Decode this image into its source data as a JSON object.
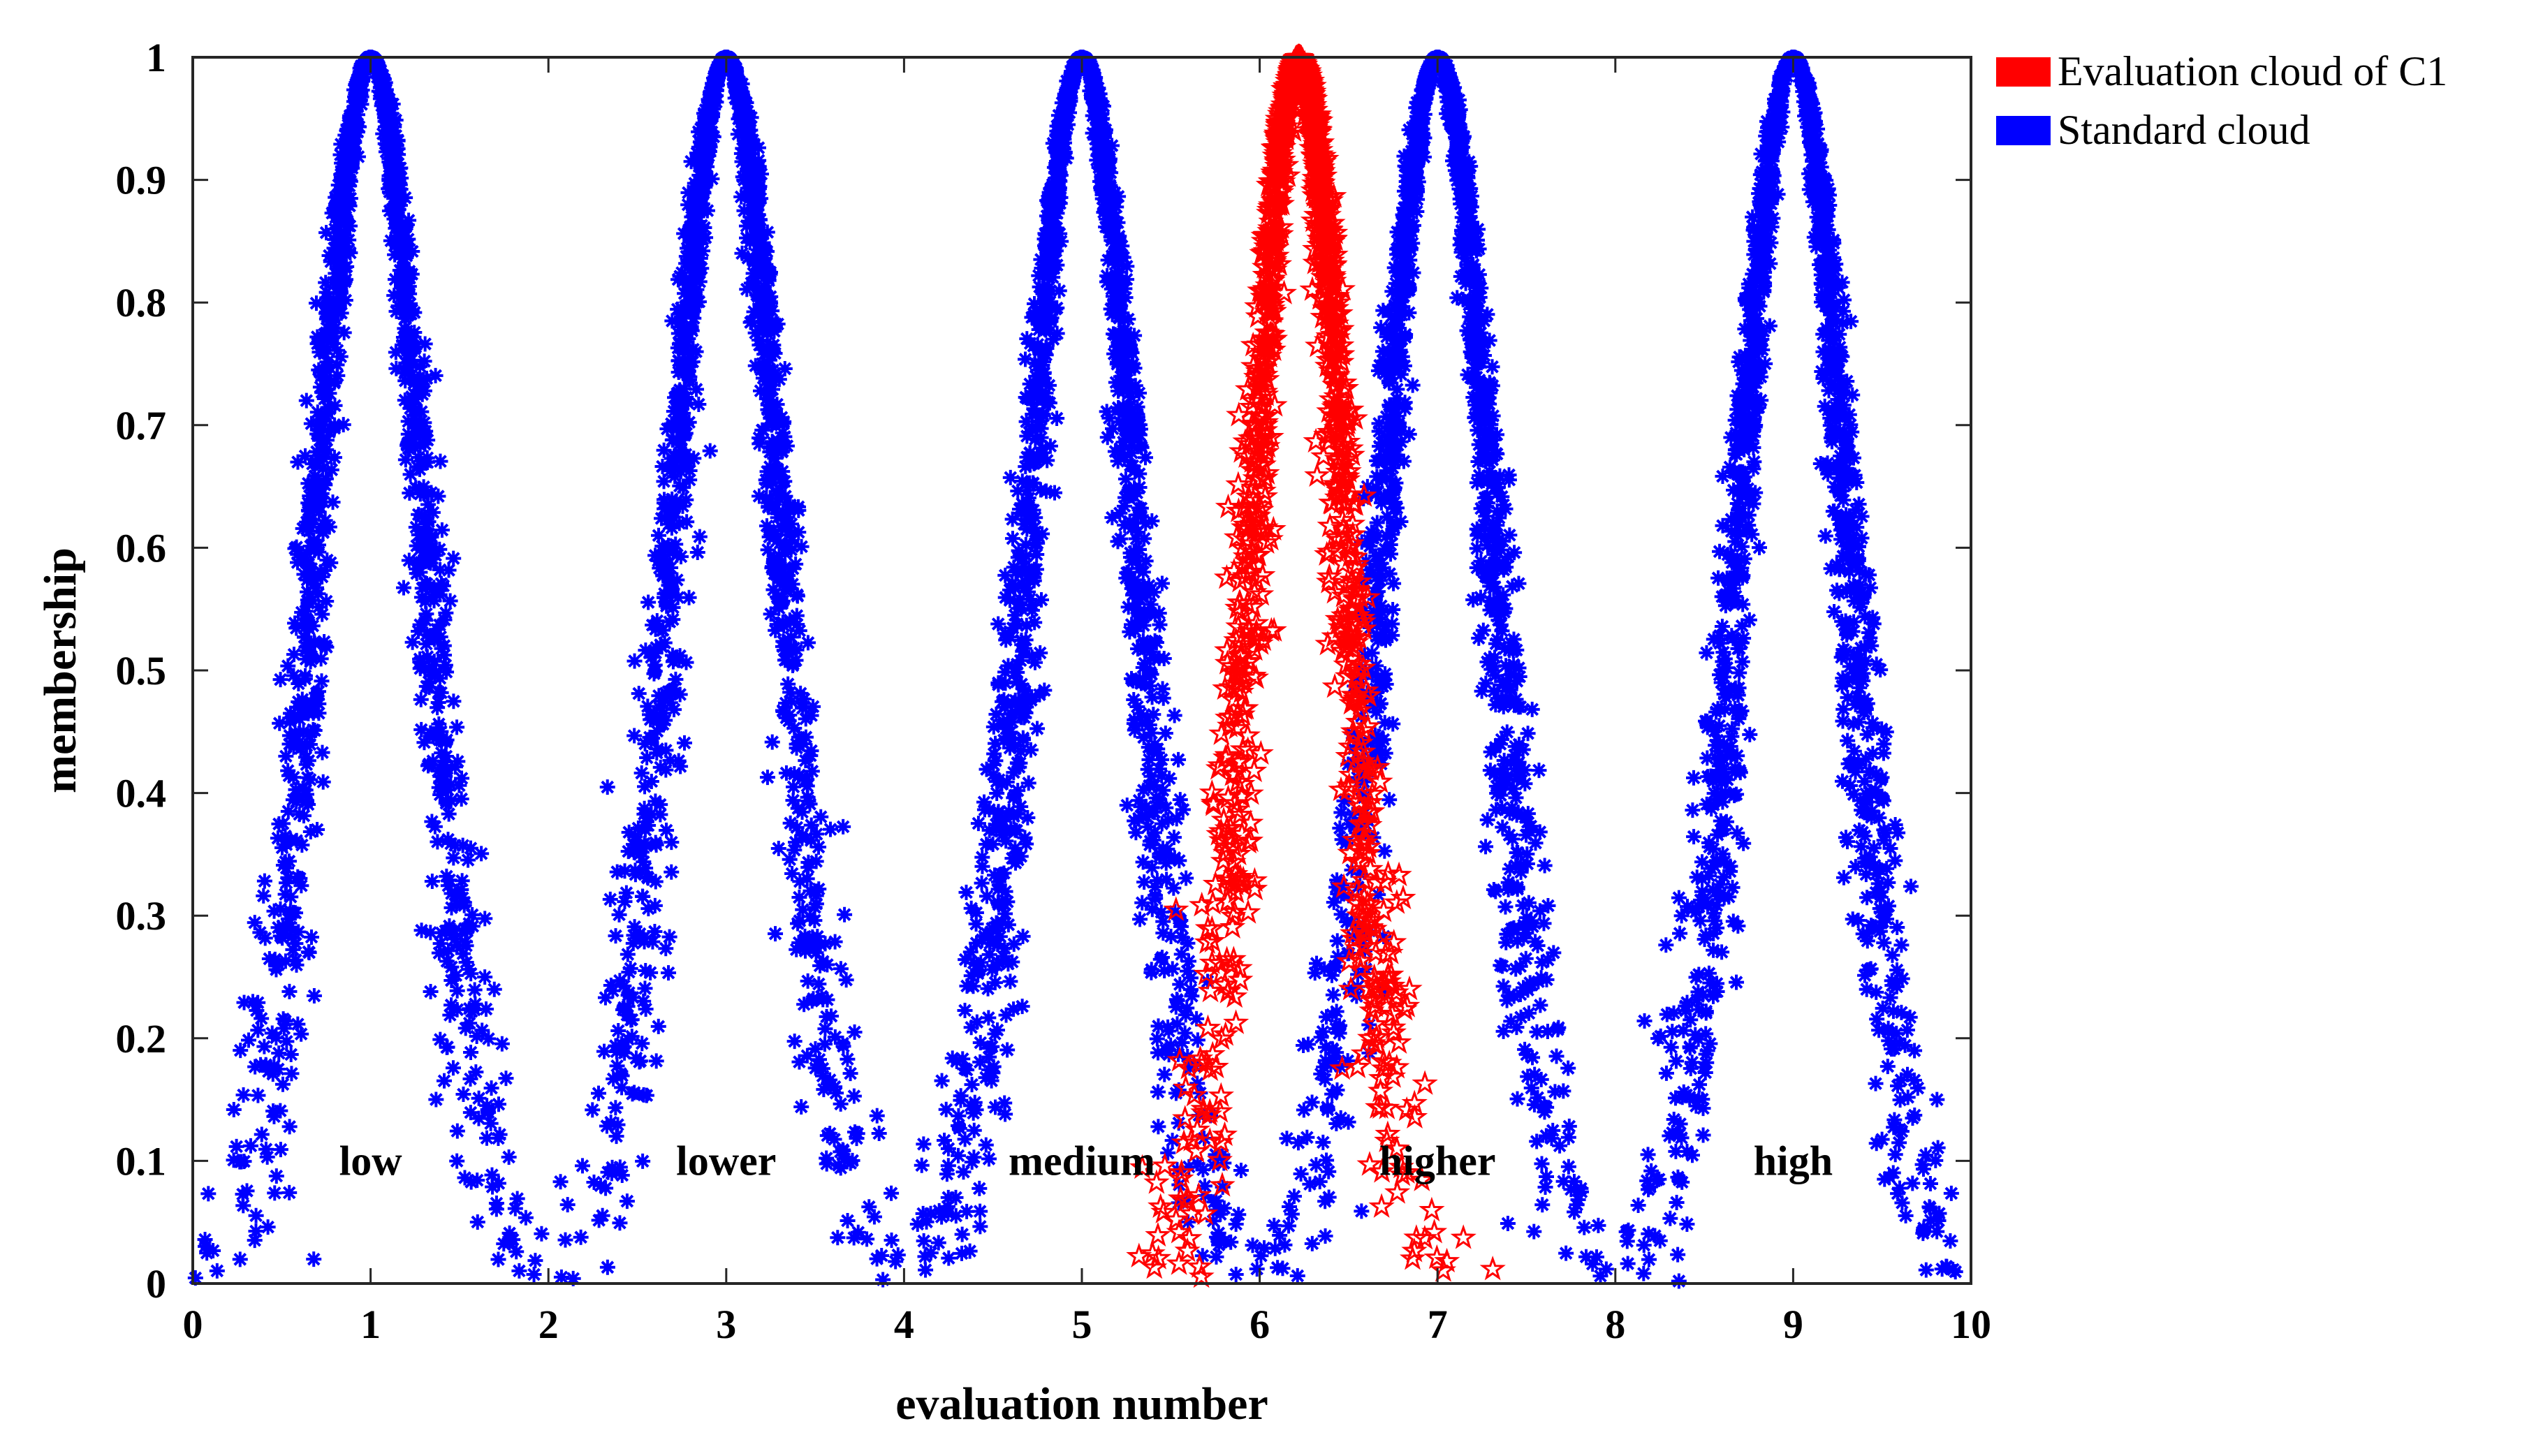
{
  "chart_data": {
    "type": "scatter",
    "xlabel": "evaluation number",
    "ylabel": "membership",
    "xlim": [
      0,
      10
    ],
    "ylim": [
      0,
      1
    ],
    "xticks": [
      "0",
      "1",
      "2",
      "3",
      "4",
      "5",
      "6",
      "7",
      "8",
      "9",
      "10"
    ],
    "yticks": [
      "0",
      "0.1",
      "0.2",
      "0.3",
      "0.4",
      "0.5",
      "0.6",
      "0.7",
      "0.8",
      "0.9",
      "1"
    ],
    "legend_position": "outside-top-right",
    "legend": [
      {
        "label": "Evaluation cloud of C1",
        "color": "#ff0000",
        "marker": "star"
      },
      {
        "label": "Standard cloud",
        "color": "#0000ff",
        "marker": "asterisk"
      }
    ],
    "series": [
      {
        "name": "Standard cloud",
        "marker": "asterisk",
        "color": "#0000ff",
        "clouds": [
          {
            "label": "low",
            "Ex": 1,
            "En": 0.31,
            "He": 0.05
          },
          {
            "label": "lower",
            "Ex": 3,
            "En": 0.31,
            "He": 0.05
          },
          {
            "label": "medium",
            "Ex": 5,
            "En": 0.31,
            "He": 0.05
          },
          {
            "label": "higher",
            "Ex": 7,
            "En": 0.31,
            "He": 0.05
          },
          {
            "label": "high",
            "Ex": 9,
            "En": 0.31,
            "He": 0.05
          }
        ]
      },
      {
        "name": "Evaluation cloud of C1",
        "marker": "star",
        "color": "#ff0000",
        "clouds": [
          {
            "label": "C1",
            "Ex": 6.22,
            "En": 0.26,
            "He": 0.05
          }
        ]
      }
    ],
    "annotations": [
      {
        "text": "low",
        "x": 1,
        "y": 0.1
      },
      {
        "text": "lower",
        "x": 3,
        "y": 0.1
      },
      {
        "text": "medium",
        "x": 5,
        "y": 0.1
      },
      {
        "text": "higher",
        "x": 7,
        "y": 0.1
      },
      {
        "text": "high",
        "x": 9,
        "y": 0.1
      }
    ]
  }
}
